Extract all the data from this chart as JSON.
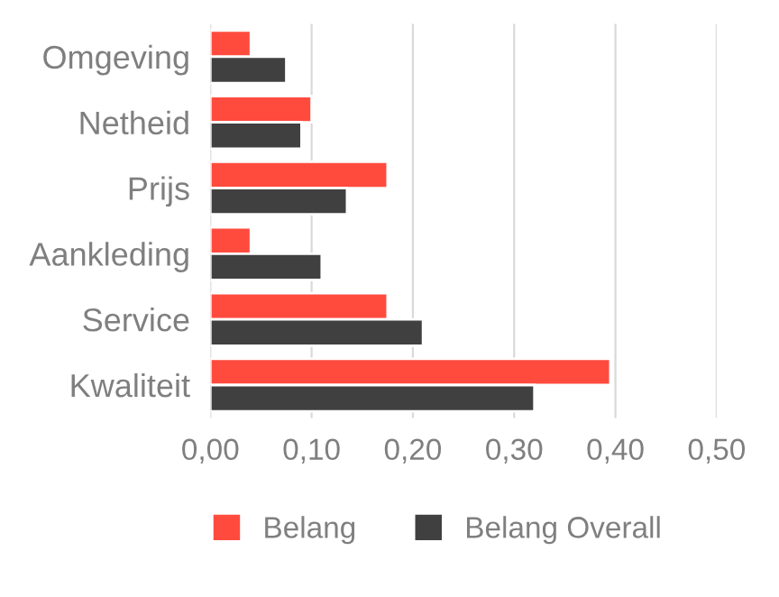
{
  "chart_data": {
    "type": "bar",
    "orientation": "horizontal",
    "categories": [
      "Omgeving",
      "Netheid",
      "Prijs",
      "Aankleding",
      "Service",
      "Kwaliteit"
    ],
    "series": [
      {
        "name": "Belang",
        "color": "#ff4b3e",
        "values": [
          0.04,
          0.1,
          0.175,
          0.04,
          0.175,
          0.395
        ]
      },
      {
        "name": "Belang Overall",
        "color": "#404040",
        "values": [
          0.075,
          0.09,
          0.135,
          0.11,
          0.21,
          0.32
        ]
      }
    ],
    "xlim": [
      0,
      0.5
    ],
    "xticks": [
      {
        "value": 0,
        "label": "0,00"
      },
      {
        "value": 0.1,
        "label": "0,10"
      },
      {
        "value": 0.2,
        "label": "0,20"
      },
      {
        "value": 0.3,
        "label": "0,30"
      },
      {
        "value": 0.4,
        "label": "0,40"
      },
      {
        "value": 0.5,
        "label": "0,50"
      }
    ],
    "grid": "x",
    "legend": "bottom"
  }
}
